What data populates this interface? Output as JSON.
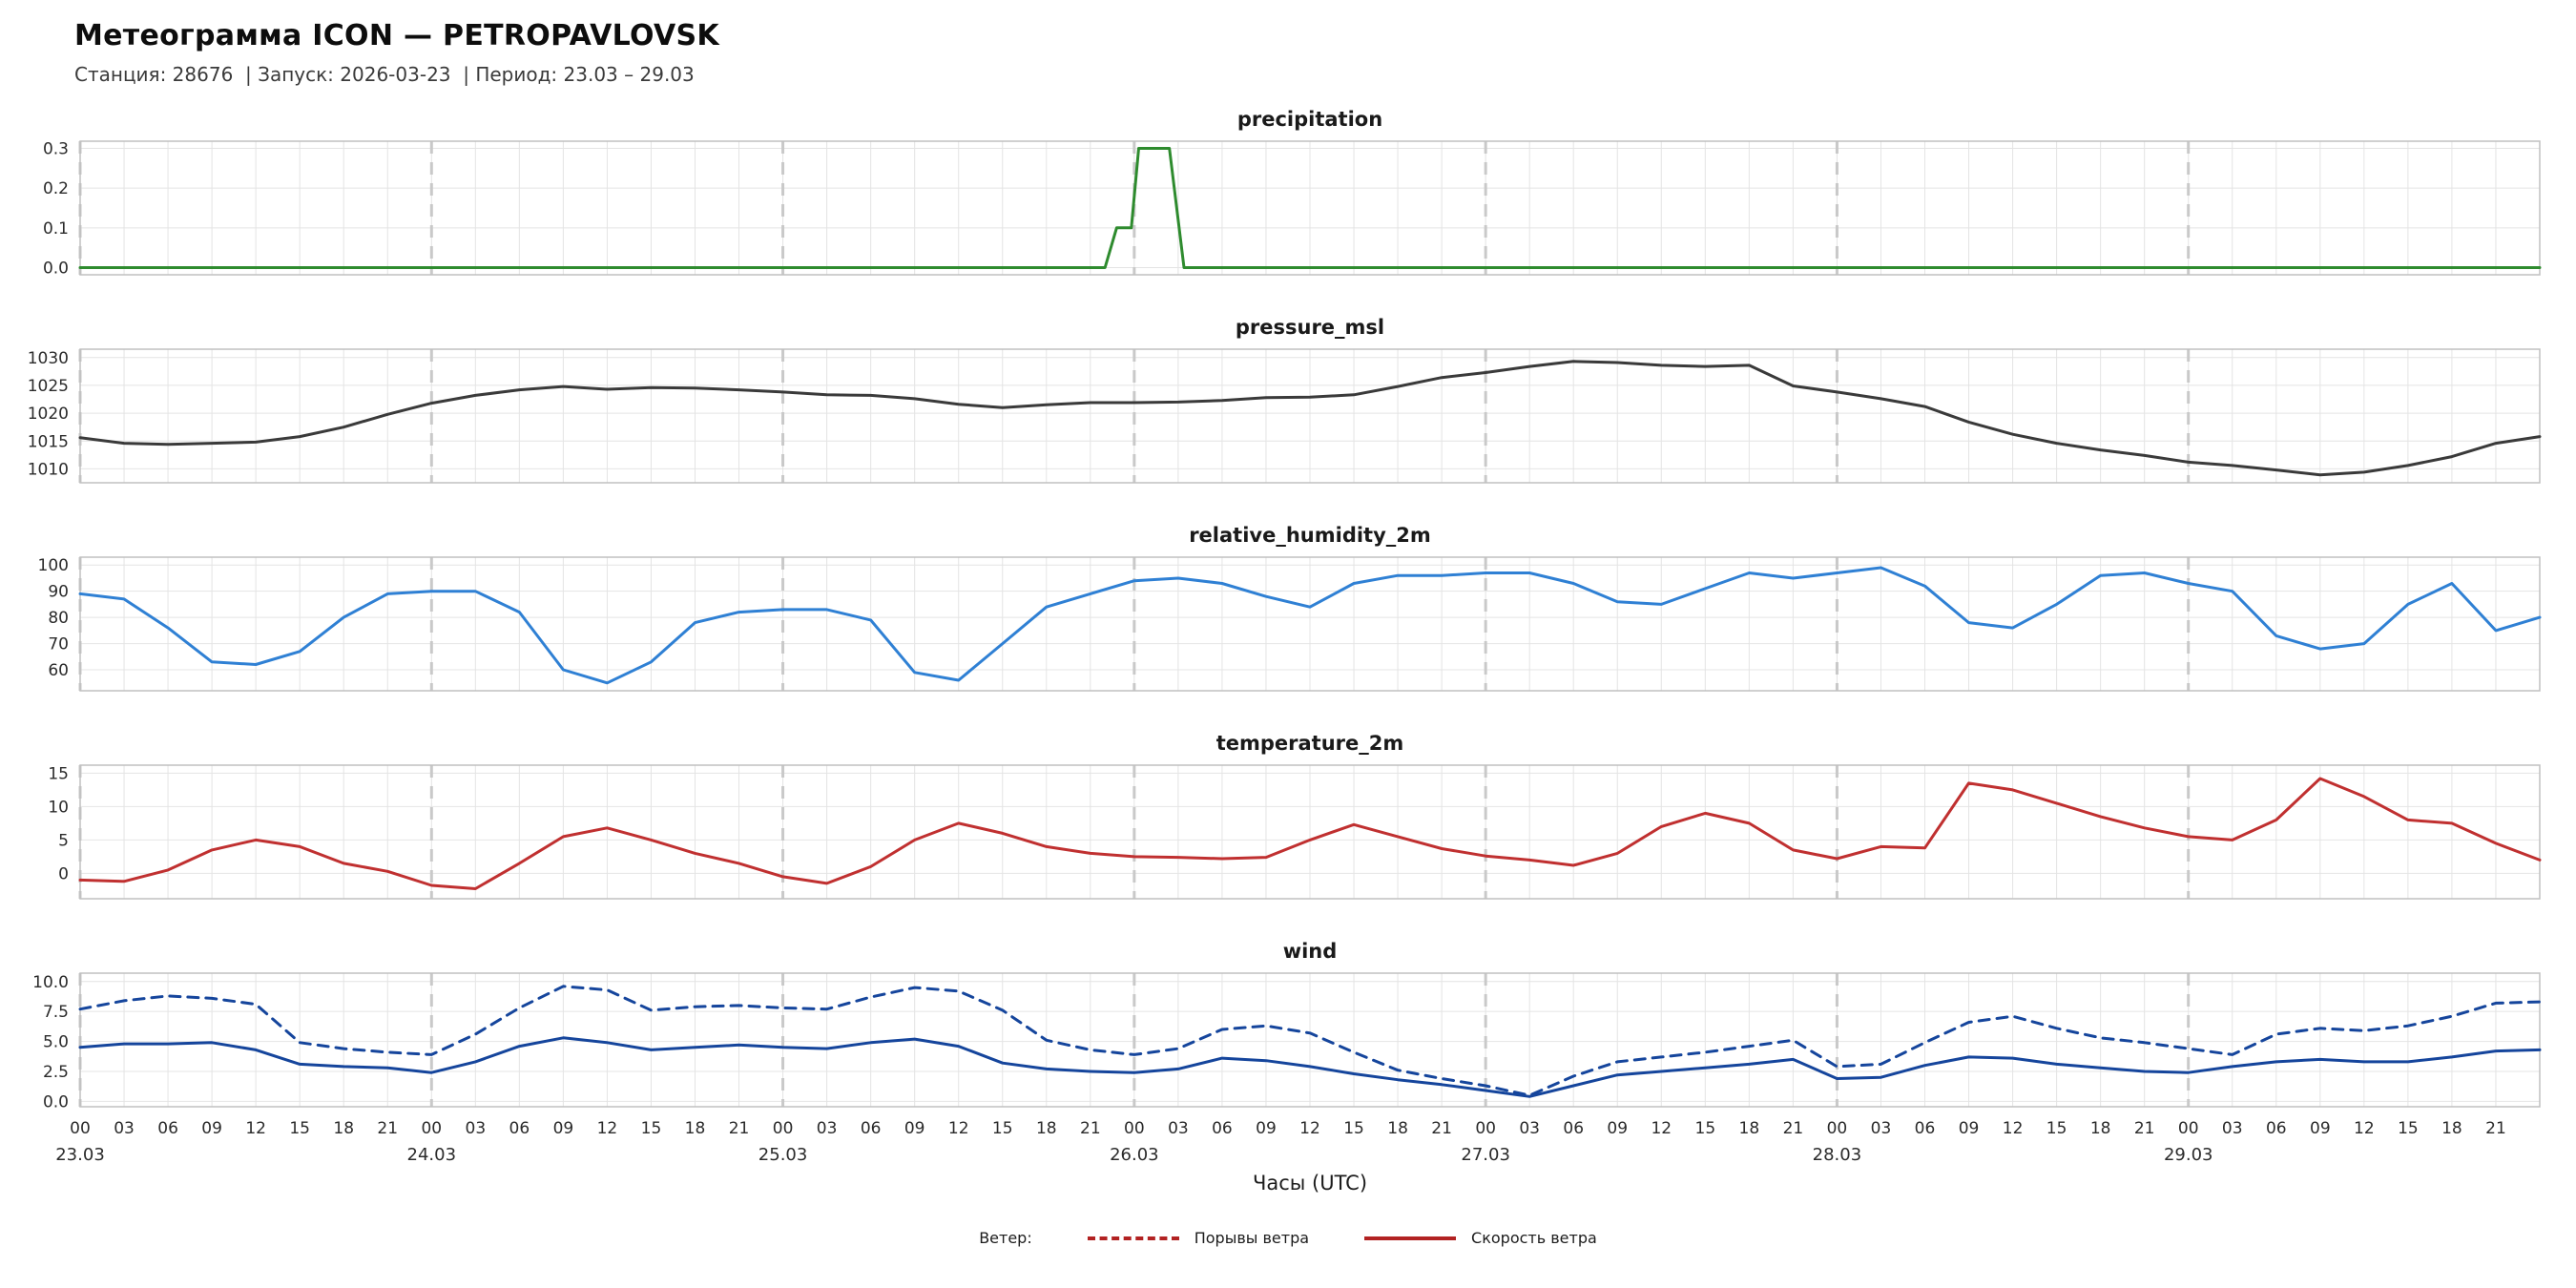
{
  "header": {
    "title": "Метеограмма ICON — PETROPAVLOVSK",
    "subtitle": "Станция: 28676  | Запуск: 2026-03-23  | Период: 23.03 – 29.03"
  },
  "xaxis": {
    "label": "Часы (UTC)",
    "hours_span": [
      0,
      168
    ],
    "hour_tick_step": 3,
    "hour_ticks": [
      "00",
      "03",
      "06",
      "09",
      "12",
      "15",
      "18",
      "21"
    ],
    "day_labels": [
      "23.03",
      "24.03",
      "25.03",
      "26.03",
      "27.03",
      "28.03",
      "29.03"
    ],
    "x_hours": [
      0,
      3,
      6,
      9,
      12,
      15,
      18,
      21,
      24,
      27,
      30,
      33,
      36,
      39,
      42,
      45,
      48,
      51,
      54,
      57,
      60,
      63,
      66,
      69,
      72,
      75,
      78,
      81,
      84,
      87,
      90,
      93,
      96,
      99,
      102,
      105,
      108,
      111,
      114,
      117,
      120,
      123,
      126,
      129,
      132,
      135,
      138,
      141,
      144,
      147,
      150,
      153,
      156,
      159,
      162,
      165,
      168
    ]
  },
  "theme": {
    "grid": "#e4e4e4",
    "day_line": "#c9c9c9",
    "border": "#c0c0c0",
    "tick_text": "#2b2b2b"
  },
  "legend": {
    "prefix": "Ветер:",
    "items": [
      {
        "label": "Порывы ветра",
        "style": "dashed",
        "color": "#b22222"
      },
      {
        "label": "Скорость ветра",
        "style": "solid",
        "color": "#b22222"
      }
    ]
  },
  "chart_data": [
    {
      "type": "line",
      "title": "precipitation",
      "color": "#2e8b2e",
      "ylim": [
        -0.018,
        0.318
      ],
      "ytick_values": [
        0.0,
        0.1,
        0.2,
        0.3
      ],
      "ytick_labels": [
        "0.0",
        "0.1",
        "0.2",
        "0.3"
      ],
      "x": [
        0,
        70,
        70.8,
        71.8,
        72.3,
        74.4,
        75.4,
        168
      ],
      "values": [
        0,
        0,
        0.1,
        0.1,
        0.3,
        0.3,
        0,
        0
      ]
    },
    {
      "type": "line",
      "title": "pressure_msl",
      "color": "#3a3a3a",
      "ylim": [
        1007.5,
        1031.5
      ],
      "ytick_values": [
        1010,
        1015,
        1020,
        1025,
        1030
      ],
      "ytick_labels": [
        "1010",
        "1015",
        "1020",
        "1025",
        "1030"
      ],
      "values": [
        1015.6,
        1014.6,
        1014.4,
        1014.6,
        1014.8,
        1015.8,
        1017.5,
        1019.8,
        1021.8,
        1023.2,
        1024.2,
        1024.8,
        1024.3,
        1024.6,
        1024.5,
        1024.2,
        1023.8,
        1023.3,
        1023.2,
        1022.6,
        1021.6,
        1021.0,
        1021.5,
        1021.9,
        1021.9,
        1022.0,
        1022.3,
        1022.8,
        1022.9,
        1023.3,
        1024.8,
        1026.4,
        1027.3,
        1028.4,
        1029.3,
        1029.1,
        1028.6,
        1028.4,
        1028.6,
        1024.9,
        1023.8,
        1022.6,
        1021.2,
        1018.4,
        1016.2,
        1014.6,
        1013.4,
        1012.4,
        1011.2,
        1010.6,
        1009.8,
        1008.9,
        1009.4,
        1010.6,
        1012.2,
        1014.6,
        1015.8
      ]
    },
    {
      "type": "line",
      "title": "relative_humidity_2m",
      "color": "#2f80d4",
      "ylim": [
        52,
        103
      ],
      "ytick_values": [
        60,
        70,
        80,
        90,
        100
      ],
      "ytick_labels": [
        "60",
        "70",
        "80",
        "90",
        "100"
      ],
      "values": [
        89,
        87,
        76,
        63,
        62,
        67,
        80,
        89,
        90,
        90,
        82,
        60,
        55,
        63,
        78,
        82,
        83,
        83,
        79,
        59,
        56,
        70,
        84,
        89,
        94,
        95,
        93,
        88,
        84,
        93,
        96,
        96,
        97,
        97,
        93,
        86,
        85,
        91,
        97,
        95,
        97,
        99,
        92,
        78,
        76,
        85,
        96,
        97,
        93,
        90,
        73,
        68,
        70,
        85,
        93,
        75,
        80
      ]
    },
    {
      "type": "line",
      "title": "temperature_2m",
      "color": "#c03030",
      "ylim": [
        -3.8,
        16.2
      ],
      "ytick_values": [
        0,
        5,
        10,
        15
      ],
      "ytick_labels": [
        "0",
        "5",
        "10",
        "15"
      ],
      "values": [
        -1.0,
        -1.2,
        0.5,
        3.5,
        5.0,
        4.0,
        1.5,
        0.3,
        -1.8,
        -2.3,
        1.5,
        5.5,
        6.8,
        5.0,
        3.0,
        1.5,
        -0.5,
        -1.5,
        1.0,
        5.0,
        7.5,
        6.0,
        4.0,
        3.0,
        2.5,
        2.4,
        2.2,
        2.4,
        5.0,
        7.3,
        5.5,
        3.7,
        2.6,
        2.0,
        1.2,
        3.0,
        7.0,
        9.0,
        7.5,
        3.5,
        2.2,
        4.0,
        3.8,
        13.5,
        12.5,
        10.5,
        8.5,
        6.8,
        5.5,
        5.0,
        8.0,
        14.2,
        11.5,
        8.0,
        7.5,
        4.5,
        2.0
      ]
    },
    {
      "type": "line",
      "title": "wind",
      "ylim": [
        -0.45,
        10.7
      ],
      "ytick_values": [
        0.0,
        2.5,
        5.0,
        7.5,
        10.0
      ],
      "ytick_labels": [
        "0.0",
        "2.5",
        "5.0",
        "7.5",
        "10.0"
      ],
      "series": [
        {
          "name": "Порывы ветра",
          "style": "dashed",
          "color": "#15459c",
          "values": [
            7.7,
            8.4,
            8.8,
            8.6,
            8.1,
            4.9,
            4.4,
            4.1,
            3.9,
            5.6,
            7.8,
            9.6,
            9.3,
            7.6,
            7.9,
            8.0,
            7.8,
            7.7,
            8.7,
            9.5,
            9.2,
            7.6,
            5.1,
            4.3,
            3.9,
            4.4,
            6.0,
            6.3,
            5.7,
            4.1,
            2.6,
            1.9,
            1.3,
            0.5,
            2.1,
            3.3,
            3.7,
            4.1,
            4.6,
            5.1,
            2.9,
            3.1,
            4.9,
            6.6,
            7.1,
            6.1,
            5.3,
            4.9,
            4.4,
            3.9,
            5.6,
            6.1,
            5.9,
            6.3,
            7.1,
            8.2,
            8.3
          ]
        },
        {
          "name": "Скорость ветра",
          "style": "solid",
          "color": "#15459c",
          "values": [
            4.5,
            4.8,
            4.8,
            4.9,
            4.3,
            3.1,
            2.9,
            2.8,
            2.4,
            3.3,
            4.6,
            5.3,
            4.9,
            4.3,
            4.5,
            4.7,
            4.5,
            4.4,
            4.9,
            5.2,
            4.6,
            3.2,
            2.7,
            2.5,
            2.4,
            2.7,
            3.6,
            3.4,
            2.9,
            2.3,
            1.8,
            1.4,
            0.9,
            0.4,
            1.3,
            2.2,
            2.5,
            2.8,
            3.1,
            3.5,
            1.9,
            2.0,
            3.0,
            3.7,
            3.6,
            3.1,
            2.8,
            2.5,
            2.4,
            2.9,
            3.3,
            3.5,
            3.3,
            3.3,
            3.7,
            4.2,
            4.3
          ]
        }
      ]
    }
  ]
}
